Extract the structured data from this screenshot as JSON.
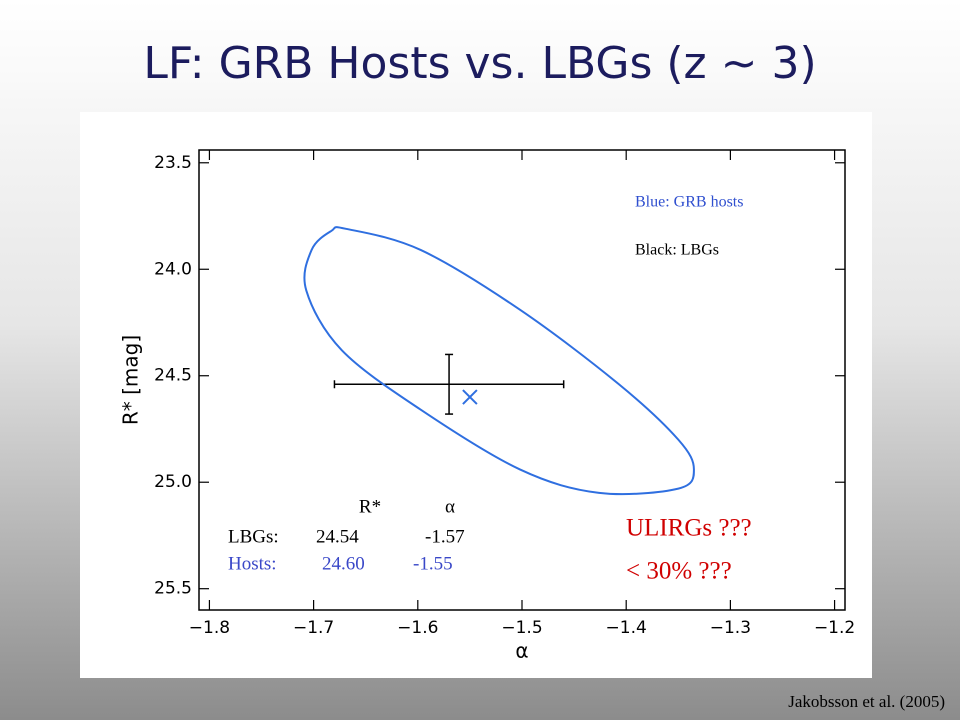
{
  "chart_data": {
    "type": "scatter",
    "title": "LF: GRB Hosts vs. LBGs (z ~ 3)",
    "x_label": "α",
    "y_label": "R* [mag]",
    "xlim": [
      -1.81,
      -1.19
    ],
    "ylim": [
      23.44,
      25.6
    ],
    "xticks": [
      {
        "value": -1.8,
        "label": "−1.8"
      },
      {
        "value": -1.7,
        "label": "−1.7"
      },
      {
        "value": -1.6,
        "label": "−1.6"
      },
      {
        "value": -1.5,
        "label": "−1.5"
      },
      {
        "value": -1.4,
        "label": "−1.4"
      },
      {
        "value": -1.3,
        "label": "−1.3"
      },
      {
        "value": -1.2,
        "label": "−1.2"
      }
    ],
    "yticks": [
      23.5,
      {
        "value": 24.0,
        "label": "24.0"
      },
      24.5,
      {
        "value": 25.0,
        "label": "25.0"
      },
      25.5
    ],
    "series": [
      {
        "name": "Black: LBGs",
        "color": "#000000",
        "x": [
          -1.57
        ],
        "y": [
          24.54
        ],
        "x_range": [
          [
            -1.68,
            -1.46
          ]
        ],
        "yerr": [
          0.14
        ]
      },
      {
        "name": "Blue: GRB hosts",
        "color": "#2f6fe0",
        "x": [
          -1.55
        ],
        "y": [
          24.6
        ],
        "contour": {
          "x": [
            -1.669,
            -1.597,
            -1.502,
            -1.407,
            -1.35,
            -1.335,
            -1.35,
            -1.426,
            -1.502,
            -1.597,
            -1.673,
            -1.707,
            -1.702,
            -1.683
          ],
          "y": [
            23.81,
            23.91,
            24.19,
            24.54,
            24.8,
            24.94,
            25.03,
            25.05,
            24.94,
            24.66,
            24.38,
            24.1,
            23.91,
            23.82
          ]
        }
      }
    ],
    "table": {
      "header": [
        "R*",
        "α"
      ],
      "rows": [
        [
          "LBGs:",
          "24.54",
          "-1.57"
        ],
        [
          "Hosts:",
          "24.60",
          "-1.55"
        ]
      ]
    },
    "annotations": [
      "ULIRGs ???",
      "< 30% ???"
    ],
    "credit": "Jakobsson et al. (2005)"
  }
}
